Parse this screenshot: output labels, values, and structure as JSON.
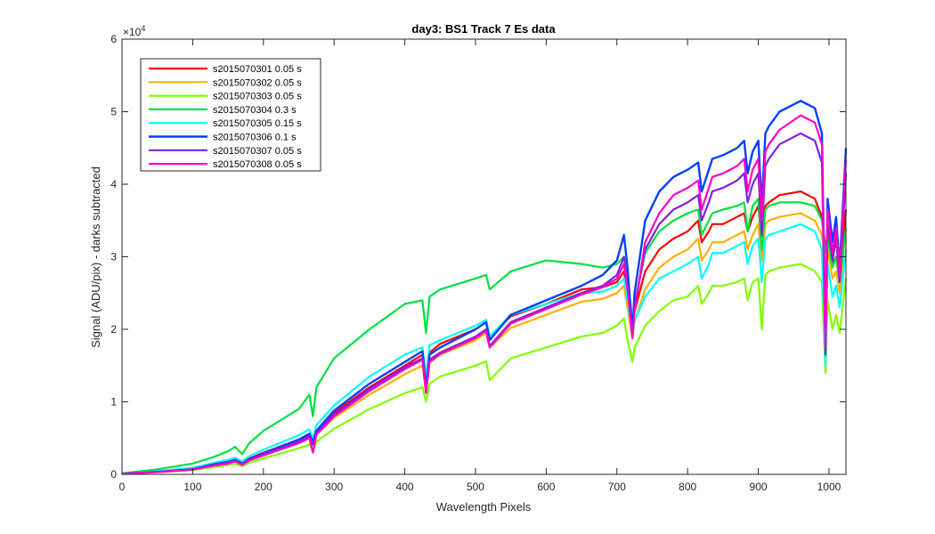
{
  "chart_data": {
    "type": "line",
    "title": "day3: BS1  Track 7 Es data",
    "xlabel": "Wavelength Pixels",
    "ylabel": "Signal (ADU/pix) - darks subtracted",
    "xlim": [
      0,
      1024
    ],
    "ylim": [
      0,
      60000
    ],
    "y_exponent_label": "×10",
    "y_exponent_power": "4",
    "x_ticks": [
      0,
      100,
      200,
      300,
      400,
      500,
      600,
      700,
      800,
      900,
      1000
    ],
    "x_tick_labels": [
      "0",
      "100",
      "200",
      "300",
      "400",
      "500",
      "600",
      "700",
      "800",
      "900",
      "1000"
    ],
    "y_ticks": [
      0,
      10000,
      20000,
      30000,
      40000,
      50000,
      60000
    ],
    "y_tick_labels": [
      "0",
      "1",
      "2",
      "3",
      "4",
      "5",
      "6"
    ],
    "grid": false,
    "legend_position": "top-left",
    "x": [
      0,
      50,
      100,
      130,
      150,
      160,
      170,
      180,
      200,
      250,
      265,
      270,
      275,
      300,
      350,
      400,
      425,
      430,
      435,
      450,
      500,
      515,
      520,
      550,
      600,
      650,
      680,
      700,
      710,
      715,
      722,
      725,
      740,
      760,
      780,
      800,
      815,
      820,
      830,
      835,
      850,
      870,
      880,
      885,
      892,
      900,
      905,
      910,
      915,
      930,
      960,
      980,
      990,
      995,
      998,
      1005,
      1010,
      1015,
      1024
    ],
    "series": [
      {
        "name": "s2015070301 0.05 s",
        "color": "#ff0000",
        "width": 2.2,
        "values": [
          100,
          400,
          800,
          1400,
          1800,
          2000,
          1600,
          2200,
          3000,
          4800,
          5500,
          4500,
          6000,
          8500,
          12000,
          15000,
          16500,
          12500,
          16800,
          18000,
          20000,
          21000,
          19000,
          21800,
          23500,
          25500,
          25800,
          26500,
          28000,
          25000,
          20000,
          22500,
          28000,
          31000,
          32500,
          33500,
          35000,
          32000,
          33500,
          34500,
          34500,
          35500,
          36000,
          33500,
          35500,
          37000,
          32000,
          37000,
          37500,
          38500,
          39000,
          38000,
          35500,
          31000,
          33000,
          29000,
          30000,
          26500,
          36500
        ]
      },
      {
        "name": "s2015070302 0.05 s",
        "color": "#ffb000",
        "width": 2.2,
        "values": [
          100,
          350,
          700,
          1300,
          1600,
          1800,
          1400,
          2000,
          2700,
          4400,
          5000,
          4100,
          5500,
          7800,
          11000,
          13800,
          15000,
          11500,
          15400,
          16500,
          18500,
          19500,
          17500,
          20200,
          22000,
          23800,
          24200,
          25000,
          26000,
          23000,
          18700,
          21000,
          25500,
          28500,
          30000,
          31000,
          32500,
          29500,
          31000,
          32000,
          32000,
          33000,
          33500,
          31000,
          33000,
          34500,
          29500,
          34500,
          35000,
          35500,
          36000,
          35000,
          33000,
          29000,
          31000,
          27000,
          28000,
          25000,
          34000
        ]
      },
      {
        "name": "s2015070303 0.05 s",
        "color": "#80ff00",
        "width": 2.2,
        "values": [
          80,
          280,
          600,
          1000,
          1300,
          1500,
          1100,
          1600,
          2200,
          3600,
          4100,
          3300,
          4500,
          6300,
          9000,
          11200,
          12000,
          10000,
          12500,
          13500,
          15000,
          15600,
          13000,
          16000,
          17500,
          19000,
          19500,
          20500,
          21500,
          18500,
          15500,
          17500,
          20500,
          22500,
          24000,
          24500,
          26000,
          23500,
          25000,
          26000,
          26000,
          26500,
          27000,
          24000,
          26500,
          27000,
          20000,
          27500,
          28000,
          28500,
          29000,
          28000,
          26500,
          14000,
          24000,
          20000,
          22000,
          19500,
          27000
        ]
      },
      {
        "name": "s2015070304 0.3 s",
        "color": "#00e040",
        "width": 2.2,
        "values": [
          150,
          700,
          1500,
          2400,
          3200,
          3800,
          2800,
          4300,
          6000,
          9000,
          11000,
          8000,
          12000,
          16000,
          20000,
          23500,
          24000,
          19500,
          24500,
          25500,
          27000,
          27500,
          25500,
          28000,
          29500,
          29000,
          28500,
          29000,
          30000,
          27500,
          21000,
          23500,
          30500,
          33500,
          35000,
          36000,
          36500,
          33000,
          35000,
          36000,
          36500,
          37000,
          37500,
          33500,
          37000,
          38000,
          31000,
          36500,
          37000,
          37500,
          37500,
          37000,
          35000,
          30500,
          32500,
          28500,
          30000,
          26500,
          34000
        ]
      },
      {
        "name": "s2015070305 0.15 s",
        "color": "#00ffff",
        "width": 2.2,
        "values": [
          100,
          450,
          900,
          1600,
          2000,
          2300,
          1800,
          2500,
          3400,
          5400,
          6200,
          5000,
          6800,
          9500,
          13500,
          16500,
          17500,
          13500,
          17800,
          18500,
          20500,
          21300,
          19000,
          22000,
          23500,
          25000,
          25200,
          26000,
          27000,
          24000,
          19000,
          21200,
          24500,
          27000,
          28000,
          29000,
          30000,
          27000,
          29000,
          30500,
          30500,
          31500,
          32000,
          29000,
          31500,
          32500,
          26500,
          32500,
          33000,
          33500,
          34500,
          33500,
          31000,
          15000,
          29000,
          24500,
          26000,
          23000,
          31000
        ]
      },
      {
        "name": "s2015070306 0.1 s",
        "color": "#0040ff",
        "width": 2.4,
        "values": [
          100,
          350,
          700,
          1400,
          1700,
          2000,
          1500,
          2100,
          2900,
          4800,
          5600,
          4400,
          6000,
          8800,
          12500,
          15500,
          17000,
          12000,
          16500,
          17500,
          20000,
          21000,
          18500,
          22000,
          24000,
          26000,
          27500,
          29500,
          33000,
          28500,
          19500,
          25000,
          35000,
          39000,
          41000,
          42000,
          43000,
          39000,
          42000,
          43500,
          44000,
          45000,
          46000,
          41500,
          44500,
          46000,
          37000,
          47000,
          48000,
          50000,
          51500,
          50500,
          47000,
          18500,
          38000,
          32000,
          35500,
          28500,
          45000
        ]
      },
      {
        "name": "s2015070307 0.05 s",
        "color": "#8020e0",
        "width": 2.2,
        "values": [
          100,
          330,
          680,
          1300,
          1600,
          1900,
          1400,
          2000,
          2800,
          4500,
          5300,
          4100,
          5700,
          8300,
          11800,
          14800,
          16000,
          11500,
          15800,
          16800,
          19000,
          20000,
          17700,
          21000,
          23000,
          25000,
          26000,
          27500,
          30000,
          26000,
          19000,
          23000,
          31000,
          34500,
          36500,
          37500,
          38500,
          35000,
          37500,
          39000,
          39500,
          40500,
          41500,
          37500,
          40000,
          41500,
          33000,
          42500,
          43500,
          45500,
          47000,
          46000,
          43000,
          16500,
          34500,
          29500,
          32500,
          26500,
          41500
        ]
      },
      {
        "name": "s2015070308 0.05 s",
        "color": "#ff00c0",
        "width": 2.2,
        "values": [
          90,
          320,
          650,
          1200,
          1500,
          1800,
          1300,
          1900,
          2600,
          4300,
          5000,
          3000,
          5500,
          8000,
          11500,
          14500,
          15800,
          11200,
          15500,
          16600,
          18800,
          19800,
          17500,
          20800,
          22800,
          24800,
          25800,
          27000,
          29000,
          25500,
          18800,
          22500,
          32000,
          36000,
          38500,
          39500,
          40500,
          36500,
          39500,
          41000,
          41500,
          42500,
          43500,
          39000,
          42000,
          43500,
          35000,
          44500,
          45500,
          47500,
          49500,
          48500,
          45500,
          17500,
          36500,
          30500,
          34000,
          27500,
          43500
        ]
      }
    ]
  }
}
